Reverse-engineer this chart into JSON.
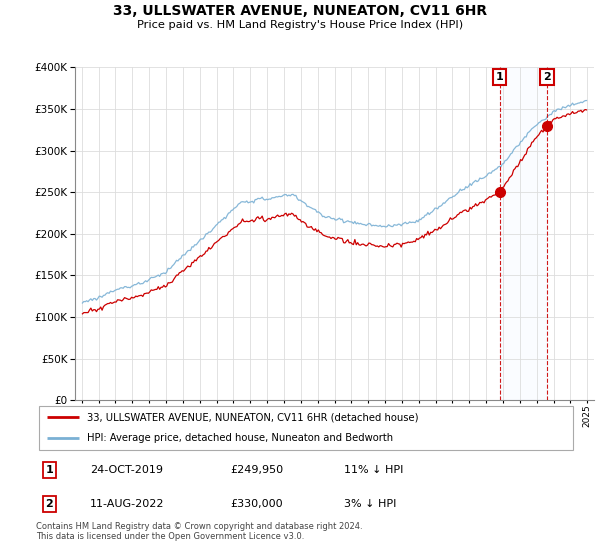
{
  "title": "33, ULLSWATER AVENUE, NUNEATON, CV11 6HR",
  "subtitle": "Price paid vs. HM Land Registry's House Price Index (HPI)",
  "legend_line1": "33, ULLSWATER AVENUE, NUNEATON, CV11 6HR (detached house)",
  "legend_line2": "HPI: Average price, detached house, Nuneaton and Bedworth",
  "footnote": "Contains HM Land Registry data © Crown copyright and database right 2024.\nThis data is licensed under the Open Government Licence v3.0.",
  "table": [
    {
      "num": "1",
      "date": "24-OCT-2019",
      "price": "£249,950",
      "hpi": "11% ↓ HPI"
    },
    {
      "num": "2",
      "date": "11-AUG-2022",
      "price": "£330,000",
      "hpi": "3% ↓ HPI"
    }
  ],
  "sale1_year": 2019.81,
  "sale1_price": 249950,
  "sale2_year": 2022.61,
  "sale2_price": 330000,
  "hpi_color": "#7ab0d4",
  "price_color": "#cc0000",
  "vline_color": "#cc0000",
  "shade_color": "#ddeeff",
  "ylim": [
    0,
    400000
  ],
  "xlim_start": 1994.6,
  "xlim_end": 2025.4
}
